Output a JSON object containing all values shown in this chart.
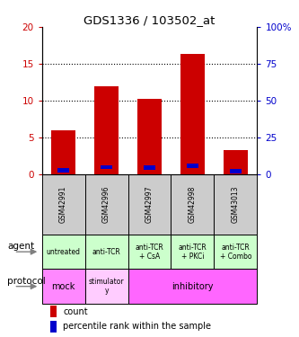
{
  "title": "GDS1336 / 103502_at",
  "samples": [
    "GSM42991",
    "GSM42996",
    "GSM42997",
    "GSM42998",
    "GSM43013"
  ],
  "count_values": [
    6.0,
    12.0,
    10.3,
    16.3,
    3.3
  ],
  "percentile_values": [
    2.8,
    5.0,
    4.6,
    5.9,
    2.2
  ],
  "bar_width": 0.55,
  "ylim_left": [
    0,
    20
  ],
  "ylim_right": [
    0,
    100
  ],
  "yticks_left": [
    0,
    5,
    10,
    15,
    20
  ],
  "yticks_right": [
    0,
    25,
    50,
    75,
    100
  ],
  "left_tick_labels": [
    "0",
    "5",
    "10",
    "15",
    "20"
  ],
  "right_tick_labels": [
    "0",
    "25",
    "50",
    "75",
    "100%"
  ],
  "color_count": "#cc0000",
  "color_percentile": "#0000cc",
  "agent_labels": [
    "untreated",
    "anti-TCR",
    "anti-TCR\n+ CsA",
    "anti-TCR\n+ PKCi",
    "anti-TCR\n+ Combo"
  ],
  "protocol_labels_mock": "mock",
  "protocol_labels_stim": "stimulator\ny",
  "protocol_labels_inhib": "inhibitory",
  "agent_bg": "#ccffcc",
  "protocol_mock_bg": "#ff88ff",
  "protocol_stim_bg": "#ffccff",
  "protocol_inhib_bg": "#ff66ff",
  "sample_bg": "#cccccc",
  "legend_count": "count",
  "legend_percentile": "percentile rank within the sample"
}
